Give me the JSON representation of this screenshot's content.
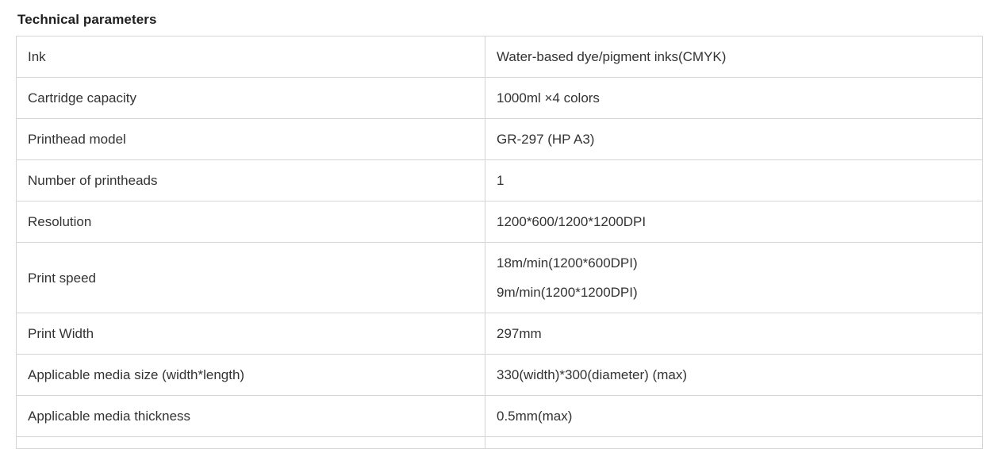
{
  "title": "Technical parameters",
  "colors": {
    "background": "#ffffff",
    "border": "#d4d4d4",
    "text": "#333333",
    "title_text": "#1f1f1f"
  },
  "table": {
    "columns": [
      "parameter",
      "value"
    ],
    "rows": [
      {
        "label": "Ink",
        "values": [
          "Water-based dye/pigment inks(CMYK)"
        ]
      },
      {
        "label": "Cartridge capacity",
        "values": [
          "1000ml ×4 colors"
        ]
      },
      {
        "label": "Printhead model",
        "values": [
          "GR-297 (HP A3)"
        ]
      },
      {
        "label": "Number of printheads",
        "values": [
          "1"
        ]
      },
      {
        "label": "Resolution",
        "values": [
          "1200*600/1200*1200DPI"
        ]
      },
      {
        "label": "Print speed",
        "values": [
          "18m/min(1200*600DPI)",
          "9m/min(1200*1200DPI)"
        ]
      },
      {
        "label": "Print Width",
        "values": [
          "297mm"
        ]
      },
      {
        "label": "Applicable media size (width*length)",
        "values": [
          "330(width)*300(diameter) (max)"
        ]
      },
      {
        "label": "Applicable media thickness",
        "values": [
          "0.5mm(max)"
        ]
      },
      {
        "label": "",
        "values": [
          ""
        ]
      }
    ]
  }
}
